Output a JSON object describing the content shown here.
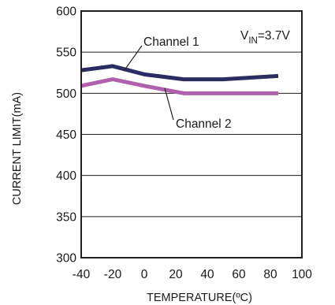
{
  "chart_data": {
    "type": "line",
    "xlabel": "TEMPERATURE(ºC)",
    "ylabel": "CURRENT LIMIT(mA)",
    "xlim": [
      -40,
      100
    ],
    "ylim": [
      300,
      600
    ],
    "xticks": [
      -40,
      -20,
      0,
      20,
      40,
      60,
      80,
      100
    ],
    "yticks": [
      300,
      350,
      400,
      450,
      500,
      550,
      600
    ],
    "grid": true,
    "annotation": {
      "prefix": "V",
      "subscript": "IN",
      "suffix": "=3.7V"
    },
    "series": [
      {
        "name": "Channel 1",
        "color": "#2b2d62",
        "x": [
          -40,
          -20,
          0,
          25,
          50,
          85
        ],
        "y": [
          528,
          533,
          523,
          517,
          517,
          521
        ]
      },
      {
        "name": "Channel 2",
        "color": "#b061ae",
        "x": [
          -40,
          -20,
          0,
          25,
          50,
          85
        ],
        "y": [
          509,
          517,
          509,
          500,
          500,
          500
        ]
      }
    ]
  }
}
